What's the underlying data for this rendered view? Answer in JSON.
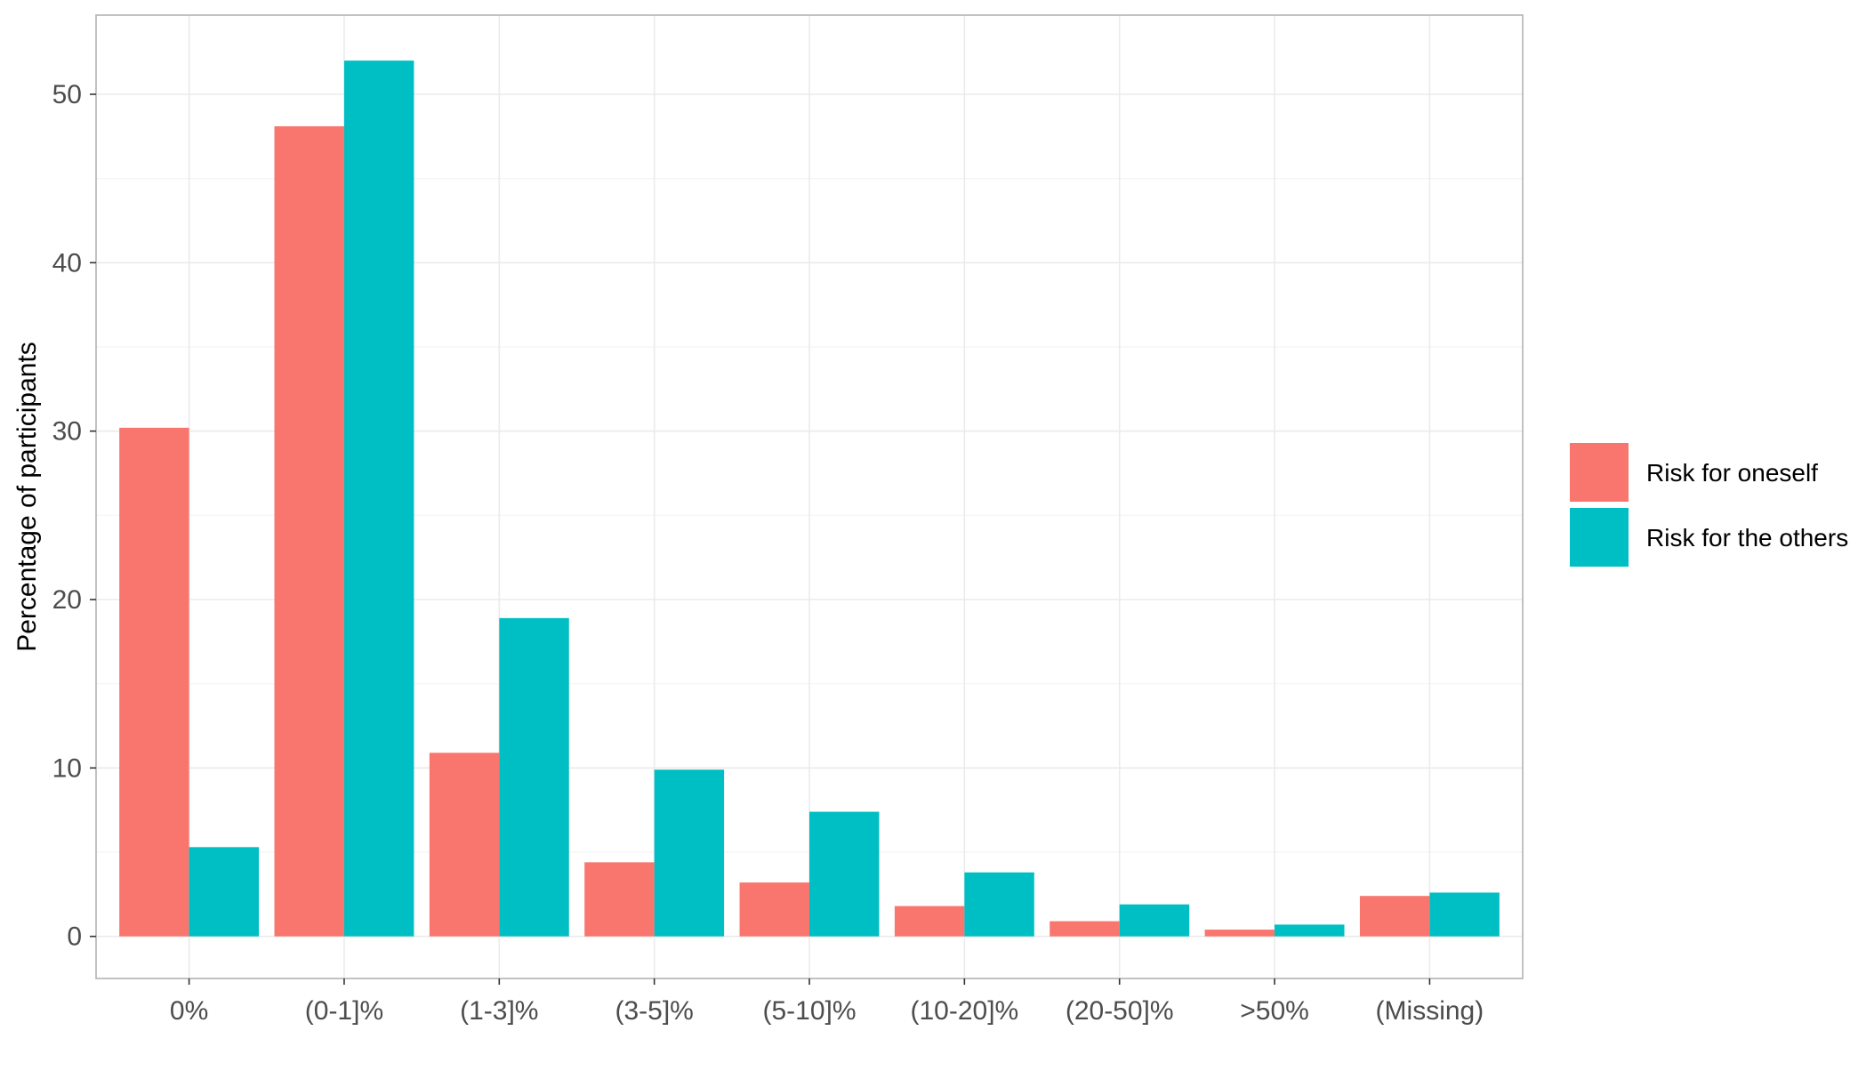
{
  "chart_data": {
    "type": "bar",
    "title": "",
    "xlabel": "",
    "ylabel": "Percentage of participants",
    "ylim": [
      -2.5,
      54.7
    ],
    "yticks": [
      0,
      10,
      20,
      30,
      40,
      50
    ],
    "grid": true,
    "legend_position": "right",
    "categories": [
      "0%",
      "(0-1]%",
      "(1-3]%",
      "(3-5]%",
      "(5-10]%",
      "(10-20]%",
      "(20-50]%",
      ">50%",
      "(Missing)"
    ],
    "series": [
      {
        "name": "Risk for oneself",
        "color": "#f8766d",
        "values": [
          30.2,
          48.1,
          10.9,
          4.4,
          3.2,
          1.8,
          0.9,
          0.4,
          2.4
        ]
      },
      {
        "name": "Risk for the others",
        "color": "#00bfc4",
        "values": [
          5.3,
          52.0,
          18.9,
          9.9,
          7.4,
          3.8,
          1.9,
          0.7,
          2.6
        ]
      }
    ]
  }
}
